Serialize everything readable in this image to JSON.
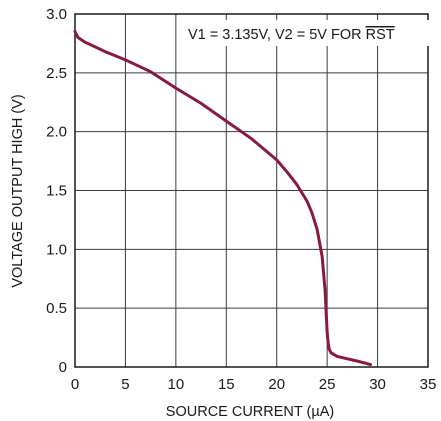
{
  "chart_data": {
    "type": "line",
    "xlabel": "SOURCE CURRENT (µA)",
    "ylabel": "VOLTAGE OUTPUT HIGH (V)",
    "xlim": [
      0,
      35
    ],
    "ylim": [
      0,
      3.0
    ],
    "x_ticks": [
      "0",
      "5",
      "10",
      "15",
      "20",
      "25",
      "30",
      "35"
    ],
    "y_ticks": [
      "0",
      "0.5",
      "1.0",
      "1.5",
      "2.0",
      "2.5",
      "3.0"
    ],
    "grid": true,
    "annotation": {
      "text": "V1 = 3.135V, V2 = 5V FOR ",
      "overline_text": "RST"
    },
    "series": [
      {
        "color": "#8b1a3a",
        "x": [
          0,
          0.3,
          1,
          2,
          3,
          5,
          7.5,
          10,
          12.5,
          15,
          17.5,
          20,
          21,
          22,
          23,
          23.5,
          24,
          24.5,
          24.8,
          25.0,
          25.1,
          25.2,
          25.4,
          26,
          27,
          28,
          29.3
        ],
        "y": [
          2.85,
          2.8,
          2.76,
          2.72,
          2.68,
          2.61,
          2.51,
          2.37,
          2.24,
          2.09,
          1.94,
          1.76,
          1.66,
          1.55,
          1.41,
          1.31,
          1.17,
          0.94,
          0.65,
          0.3,
          0.2,
          0.15,
          0.12,
          0.09,
          0.07,
          0.05,
          0.02
        ]
      }
    ]
  }
}
